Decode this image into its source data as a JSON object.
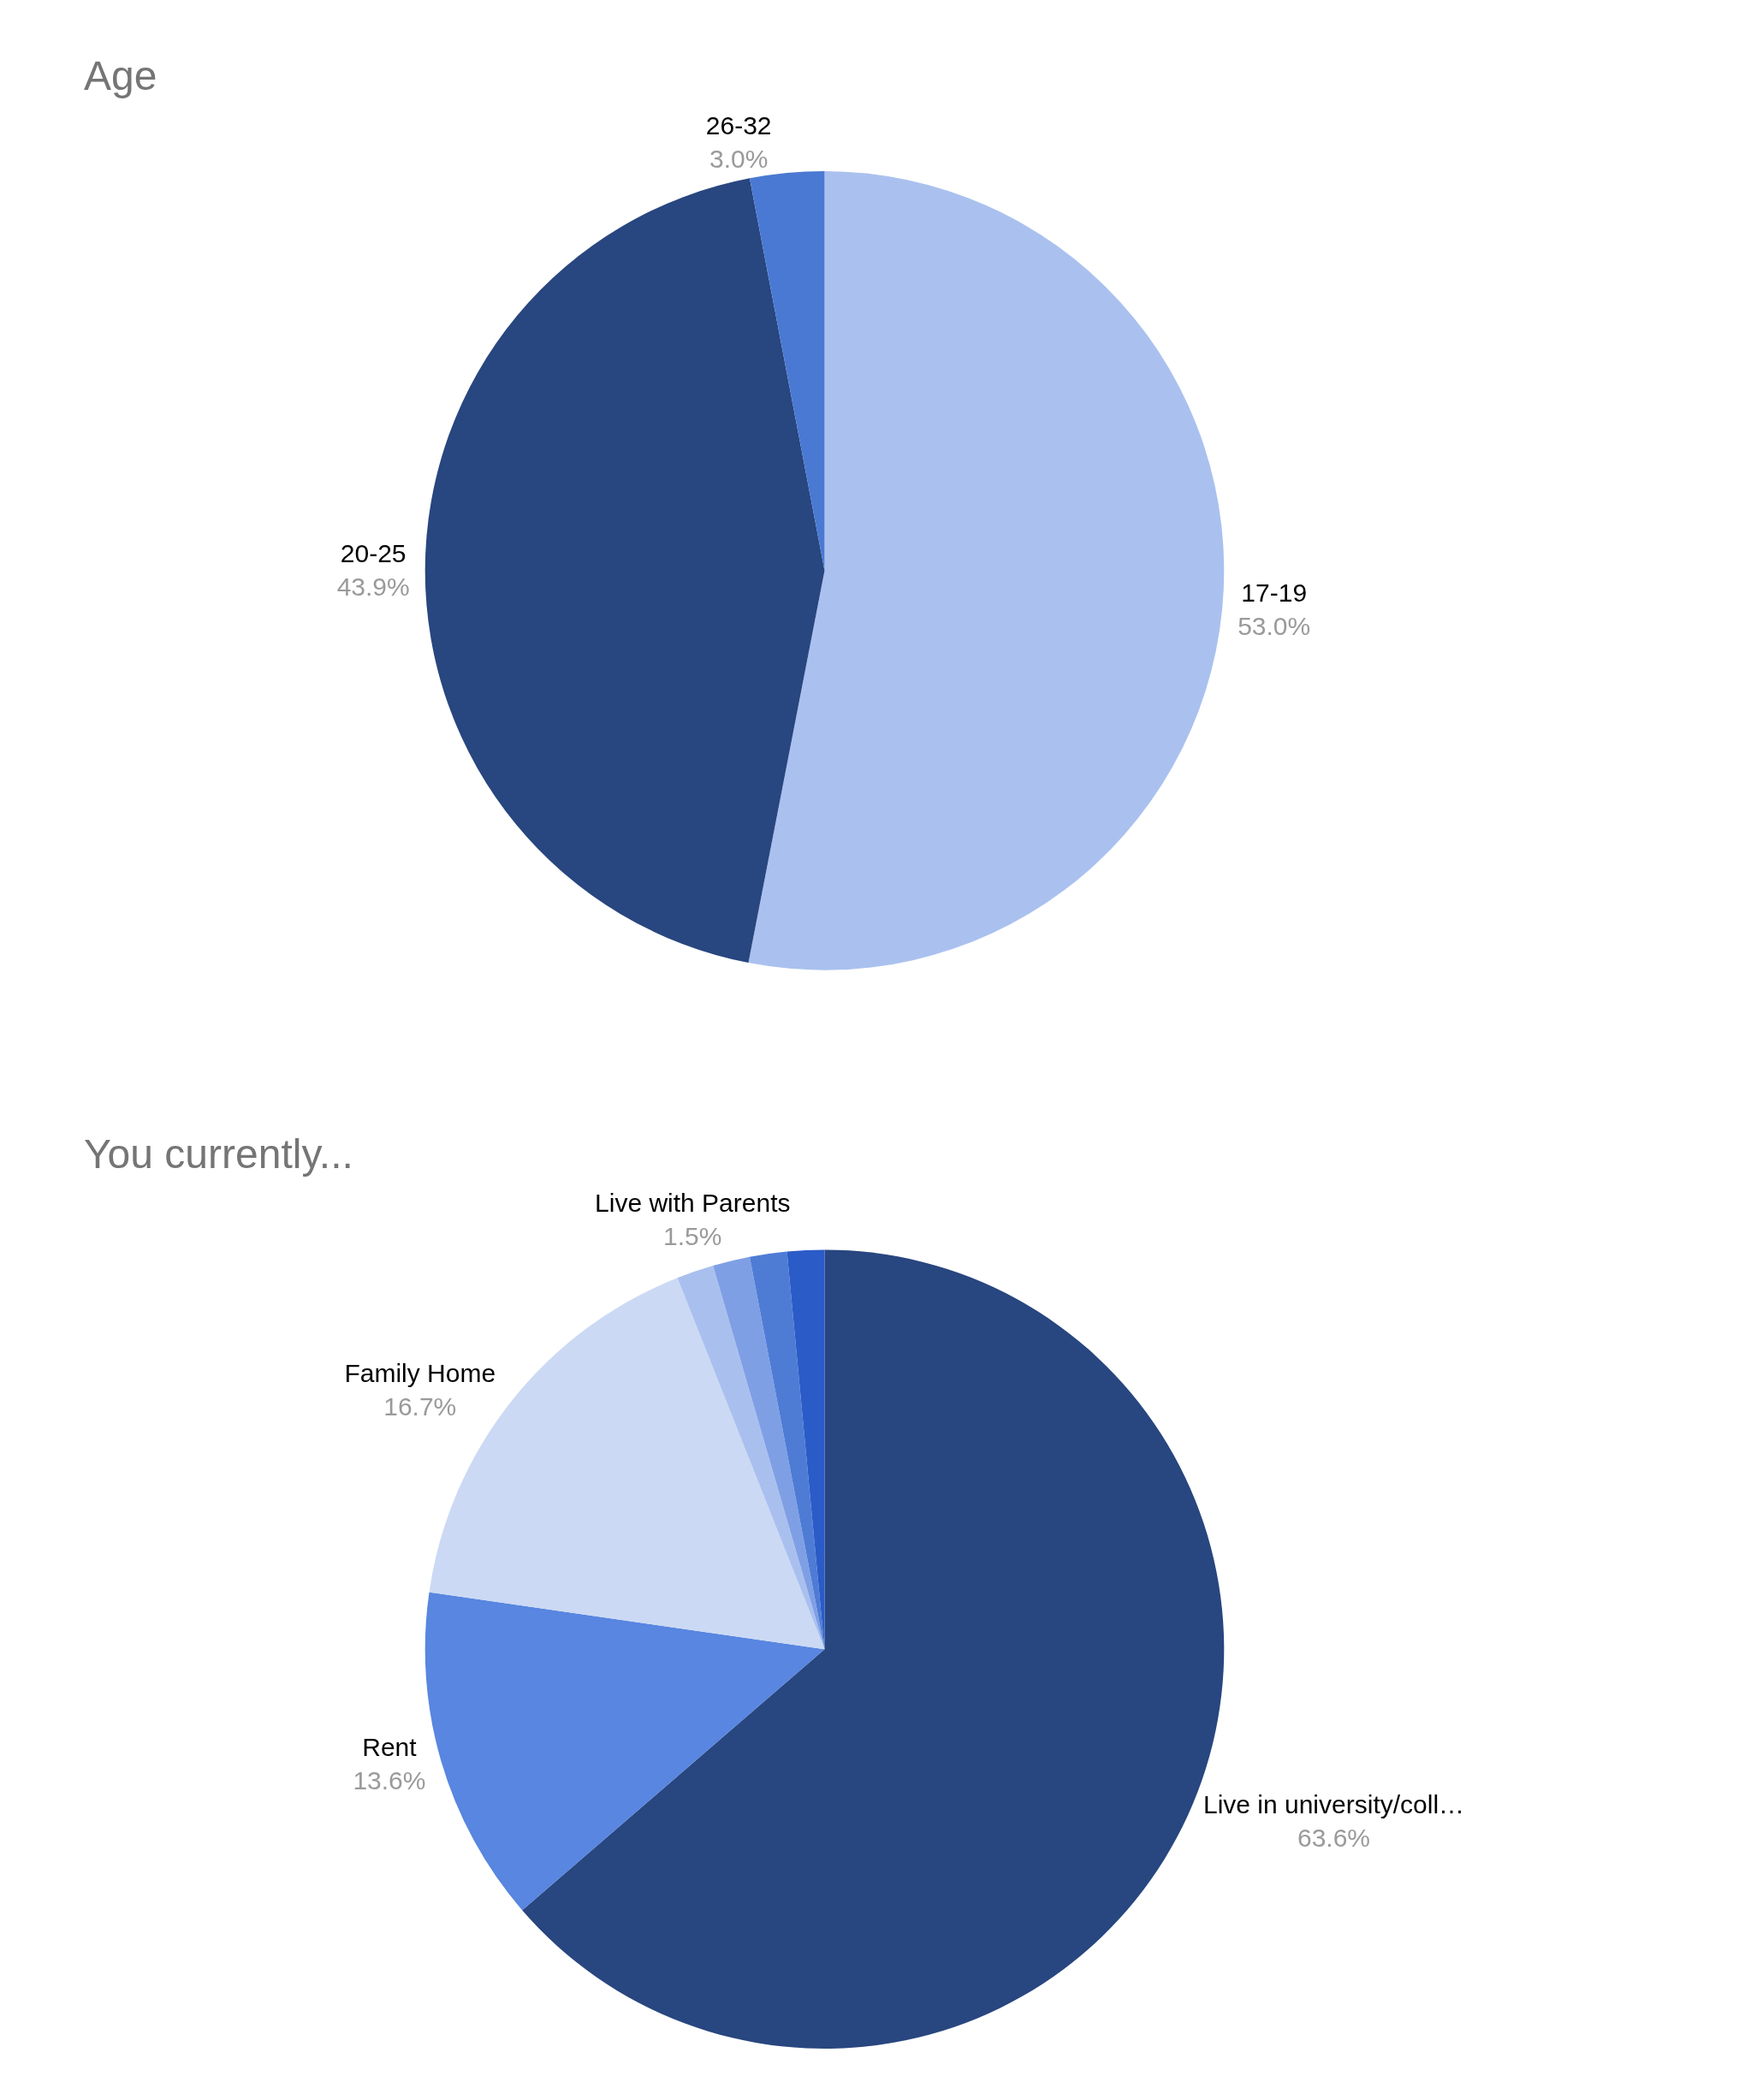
{
  "chart_data": [
    {
      "type": "pie",
      "title": "Age",
      "categories": [
        "17-19",
        "20-25",
        "26-32"
      ],
      "values": [
        53.0,
        43.9,
        3.0
      ],
      "colors": [
        "#aac1ef",
        "#28467f",
        "#4a79d3"
      ],
      "value_labels": [
        "53.0%",
        "43.9%",
        "3.0%"
      ],
      "legend": false
    },
    {
      "type": "pie",
      "title": "You currently...",
      "categories": [
        "Live in university/coll…",
        "Rent",
        "Family Home",
        null,
        null,
        null,
        "Live with Parents"
      ],
      "values": [
        63.6,
        13.6,
        16.7,
        1.5,
        1.5,
        1.5,
        1.5
      ],
      "colors": [
        "#28467f",
        "#5886e0",
        "#cbd9f4",
        "#a9c0ef",
        "#7f9fe5",
        "#4e7cd5",
        "#2a5bc7"
      ],
      "value_labels": [
        "63.6%",
        "13.6%",
        "16.7%",
        null,
        null,
        null,
        "1.5%"
      ],
      "legend": false
    }
  ]
}
